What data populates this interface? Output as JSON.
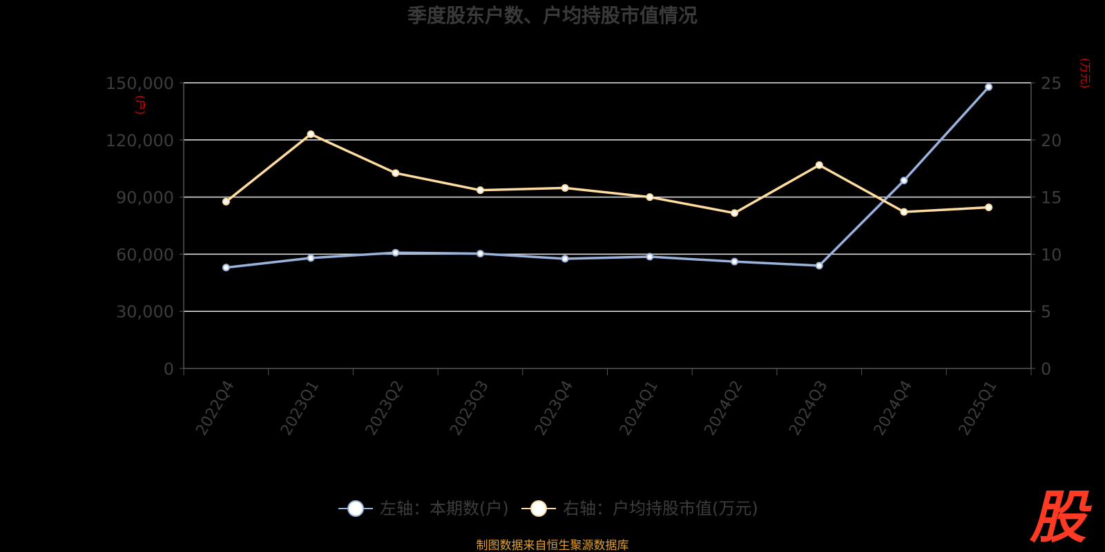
{
  "chart_data": {
    "type": "line",
    "title": "季度股东户数、户均持股市值情况",
    "categories": [
      "2022Q4",
      "2023Q1",
      "2023Q2",
      "2023Q3",
      "2023Q4",
      "2024Q1",
      "2024Q2",
      "2024Q3",
      "2024Q4",
      "2025Q1"
    ],
    "left_axis": {
      "unit": "(户)",
      "ylim": [
        0,
        150000
      ],
      "ticks": [
        "0",
        "30,000",
        "60,000",
        "90,000",
        "120,000",
        "150,000"
      ]
    },
    "right_axis": {
      "unit": "(万元)",
      "ylim": [
        0,
        25
      ],
      "ticks": [
        "0",
        "5",
        "10",
        "15",
        "20",
        "25"
      ]
    },
    "series": [
      {
        "name": "左轴：本期数(户)",
        "axis": "left",
        "color": "#9ab3dd",
        "values": [
          53000,
          58000,
          60800,
          60300,
          57600,
          58700,
          56100,
          54000,
          98700,
          147800
        ]
      },
      {
        "name": "右轴：户均持股市值(万元)",
        "axis": "right",
        "color": "#ffdca0",
        "values": [
          14.6,
          20.5,
          17.1,
          15.6,
          15.8,
          15.0,
          13.6,
          17.8,
          13.7,
          14.1
        ]
      }
    ],
    "grid": true,
    "legend": "bottom-center"
  },
  "footer": {
    "source": "制图数据来自恒生聚源数据库",
    "logo": "股"
  }
}
